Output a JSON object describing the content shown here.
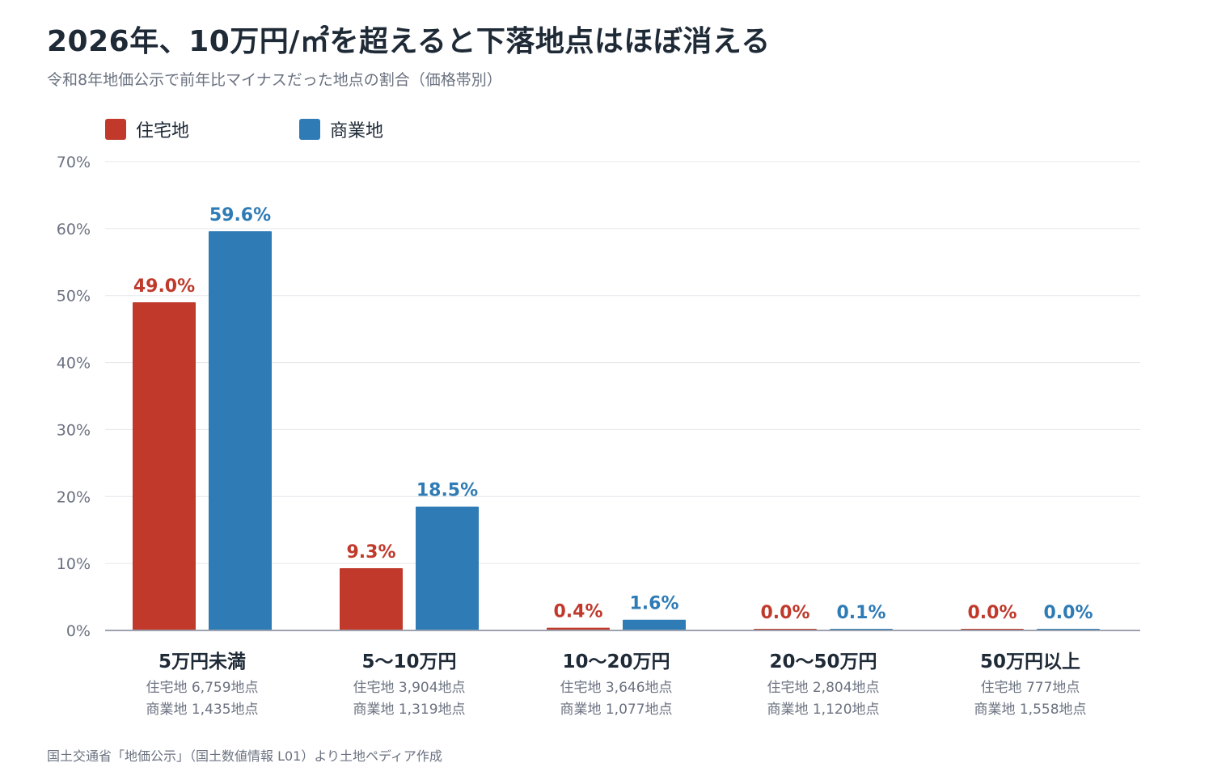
{
  "header": {
    "title": "2026年、10万円/㎡を超えると下落地点はほぼ消える",
    "subtitle": "令和8年地価公示で前年比マイナスだった地点の割合（価格帯別）"
  },
  "source": "国土交通省「地価公示」（国土数値情報 L01）より土地ペディア作成",
  "colors": {
    "residential": "#c0392b",
    "commercial": "#2e7bb5",
    "grid": "#e5e7eb",
    "axis": "#9ca3af"
  },
  "chart_data": {
    "type": "bar",
    "title": "2026年、10万円/㎡を超えると下落地点はほぼ消える",
    "subtitle": "令和8年地価公示で前年比マイナスだった地点の割合（価格帯別）",
    "categories": [
      "5万円未満",
      "5〜10万円",
      "10〜20万円",
      "20〜50万円",
      "50万円以上"
    ],
    "category_notes": [
      [
        "住宅地 6,759地点",
        "商業地 1,435地点"
      ],
      [
        "住宅地 3,904地点",
        "商業地 1,319地点"
      ],
      [
        "住宅地 3,646地点",
        "商業地 1,077地点"
      ],
      [
        "住宅地 2,804地点",
        "商業地 1,120地点"
      ],
      [
        "住宅地 777地点",
        "商業地 1,558地点"
      ]
    ],
    "series": [
      {
        "name": "住宅地",
        "color": "#c0392b",
        "values": [
          49.0,
          9.3,
          0.4,
          0.0,
          0.0
        ],
        "labels": [
          "49.0%",
          "9.3%",
          "0.4%",
          "0.0%",
          "0.0%"
        ]
      },
      {
        "name": "商業地",
        "color": "#2e7bb5",
        "values": [
          59.6,
          18.5,
          1.6,
          0.1,
          0.0
        ],
        "labels": [
          "59.6%",
          "18.5%",
          "1.6%",
          "0.1%",
          "0.0%"
        ]
      }
    ],
    "yticks": [
      "0%",
      "10%",
      "20%",
      "30%",
      "40%",
      "50%",
      "60%",
      "70%"
    ],
    "ylim": [
      0,
      70
    ],
    "grid": true,
    "legend_position": "top-left"
  }
}
